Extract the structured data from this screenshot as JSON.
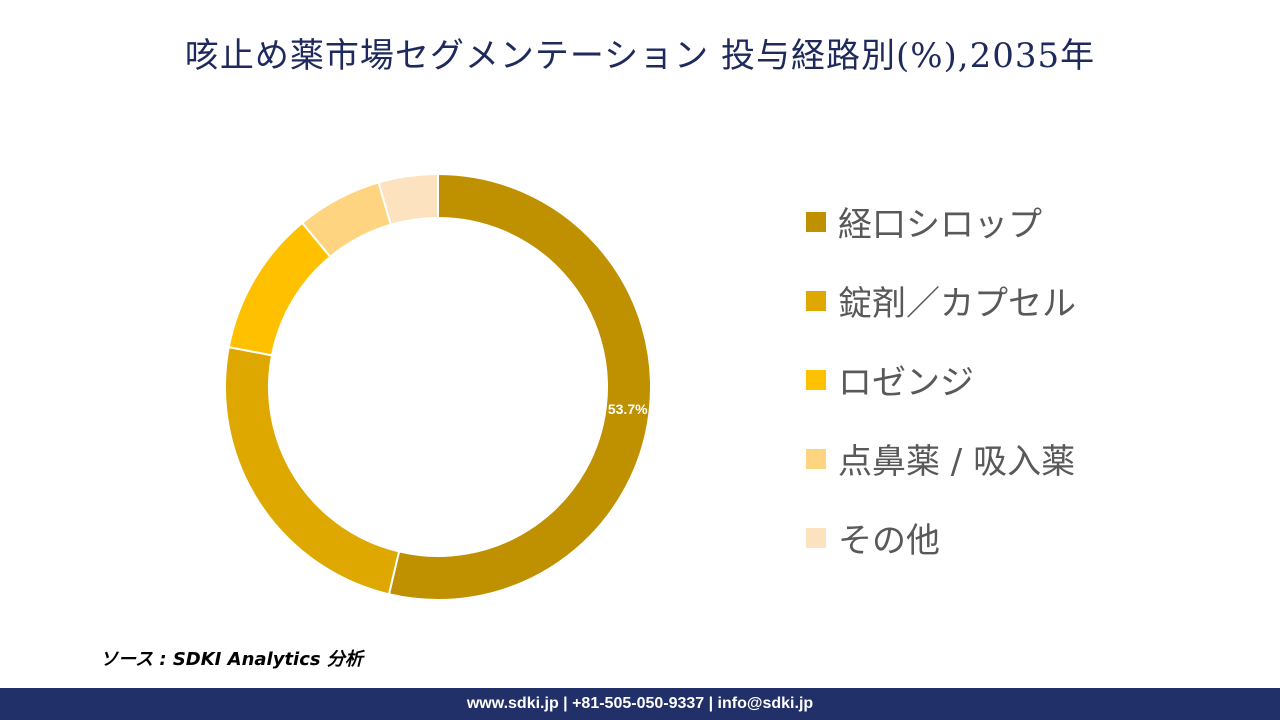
{
  "title": "咳止め薬市場セグメンテーション 投与経路別(%),2035年",
  "chart_data": {
    "type": "pie",
    "subtype": "donut",
    "categories": [
      "経口シロップ",
      "錠剤／カプセル",
      "ロゼンジ",
      "点鼻薬 / 吸入薬",
      "その他"
    ],
    "values": [
      53.7,
      24.3,
      11.0,
      6.5,
      4.5
    ],
    "value_labels": [
      "53.7%",
      "",
      "",
      "",
      ""
    ],
    "colors": [
      "#bf9000",
      "#dfa800",
      "#ffc000",
      "#ffd480",
      "#fde2bf"
    ],
    "legend_position": "right"
  },
  "source": "ソース : SDKI Analytics 分析",
  "footer": "www.sdki.jp | +81-505-050-9337 | info@sdki.jp"
}
